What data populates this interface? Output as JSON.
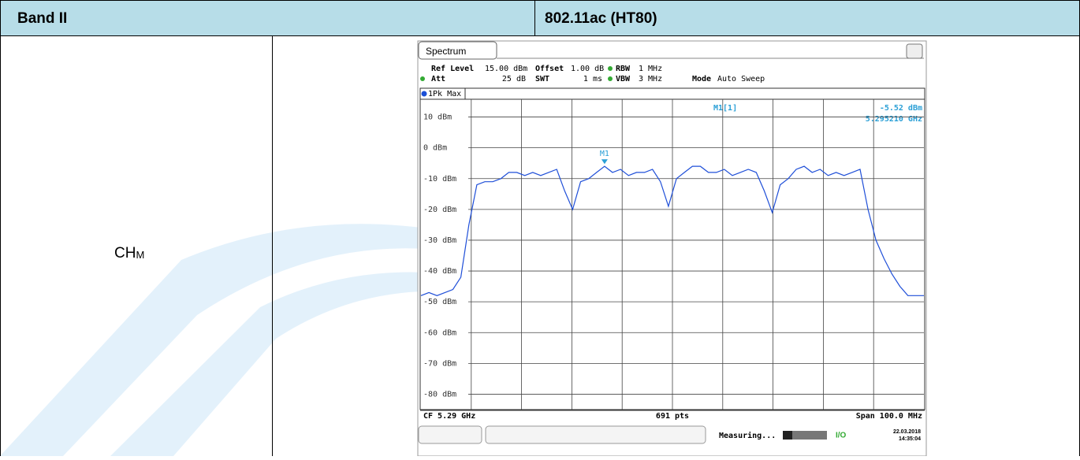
{
  "header": {
    "band": "Band II",
    "mode": "802.11ac (HT80)"
  },
  "row_label": {
    "main": "CH",
    "sub": "M"
  },
  "spectrum": {
    "tab": "Spectrum",
    "settings": {
      "ref_level_label": "Ref Level",
      "ref_level": "15.00 dBm",
      "offset_label": "Offset",
      "offset": "1.00 dB",
      "rbw_label": "RBW",
      "rbw": "1 MHz",
      "att_label": "Att",
      "att": "25 dB",
      "swt_label": "SWT",
      "swt": "1 ms",
      "vbw_label": "VBW",
      "vbw": "3 MHz",
      "mode_label": "Mode",
      "mode": "Auto Sweep"
    },
    "trace_name": "1Pk Max",
    "ylim": [
      -85,
      15
    ],
    "yticks": [
      {
        "value": 10,
        "label": "10 dBm"
      },
      {
        "value": 0,
        "label": "0 dBm"
      },
      {
        "value": -10,
        "label": "-10 dBm"
      },
      {
        "value": -20,
        "label": "-20 dBm"
      },
      {
        "value": -30,
        "label": "-30 dBm"
      },
      {
        "value": -40,
        "label": "-40 dBm"
      },
      {
        "value": -50,
        "label": "-50 dBm"
      },
      {
        "value": -60,
        "label": "-60 dBm"
      },
      {
        "value": -70,
        "label": "-70 dBm"
      },
      {
        "value": -80,
        "label": "-80 dBm"
      }
    ],
    "trace": [
      -48,
      -47,
      -48,
      -47,
      -46,
      -42,
      -25,
      -12,
      -11,
      -11,
      -10,
      -8,
      -8,
      -9,
      -8,
      -9,
      -8,
      -7,
      -14,
      -20,
      -11,
      -10,
      -8,
      -6,
      -8,
      -7,
      -9,
      -8,
      -8,
      -7,
      -11,
      -19,
      -10,
      -8,
      -6,
      -6,
      -8,
      -8,
      -7,
      -9,
      -8,
      -7,
      -8,
      -14,
      -21,
      -12,
      -10,
      -7,
      -6,
      -8,
      -7,
      -9,
      -8,
      -9,
      -8,
      -7,
      -20,
      -30,
      -36,
      -41,
      -45,
      -48,
      -48,
      -48
    ],
    "marker": {
      "name": "M1",
      "readout_name": "M1[1]",
      "value": -5.52,
      "readout": "-5.52 dBm",
      "freq": "5.295210 GHz"
    },
    "footer": {
      "cf": "CF 5.29 GHz",
      "pts": "691 pts",
      "span": "Span 100.0 MHz"
    },
    "status": {
      "state": "Measuring...",
      "date": "22.03.2018",
      "time": "14:35:04"
    }
  }
}
